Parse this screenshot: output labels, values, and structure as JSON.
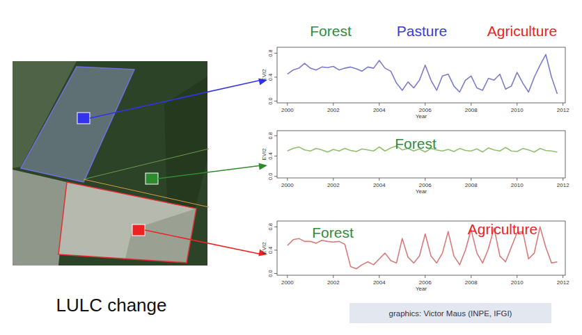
{
  "caption": "LULC change",
  "credit": "graphics: Victor Maus (INPE, IFGI)",
  "chart_data": [
    {
      "type": "line",
      "x_label": "Year",
      "y_label": "EVI2",
      "color": "#7b7bcc",
      "annotations": [
        {
          "text": "Forest",
          "color": "#2e8b3a"
        },
        {
          "text": "Pasture",
          "color": "#3a3ae0"
        },
        {
          "text": "Agriculture",
          "color": "#ee2222"
        }
      ],
      "x": [
        2000,
        2000.25,
        2000.5,
        2000.75,
        2001,
        2001.25,
        2001.5,
        2001.75,
        2002,
        2002.25,
        2002.5,
        2002.75,
        2003,
        2003.25,
        2003.5,
        2003.75,
        2004,
        2004.25,
        2004.5,
        2004.75,
        2005,
        2005.25,
        2005.5,
        2005.75,
        2006,
        2006.25,
        2006.5,
        2006.75,
        2007,
        2007.25,
        2007.5,
        2007.75,
        2008,
        2008.25,
        2008.5,
        2008.75,
        2009,
        2009.25,
        2009.5,
        2009.75,
        2010,
        2010.25,
        2010.5,
        2010.75,
        2011,
        2011.25,
        2011.5,
        2011.75
      ],
      "values": [
        0.45,
        0.52,
        0.55,
        0.63,
        0.55,
        0.52,
        0.57,
        0.56,
        0.58,
        0.52,
        0.55,
        0.57,
        0.54,
        0.5,
        0.57,
        0.55,
        0.68,
        0.55,
        0.5,
        0.3,
        0.18,
        0.32,
        0.22,
        0.35,
        0.6,
        0.35,
        0.18,
        0.42,
        0.45,
        0.25,
        0.15,
        0.35,
        0.42,
        0.22,
        0.18,
        0.38,
        0.35,
        0.45,
        0.2,
        0.25,
        0.48,
        0.3,
        0.15,
        0.4,
        0.6,
        0.78,
        0.4,
        0.12
      ],
      "xlim": [
        1999.55,
        2012.1
      ],
      "ylim": [
        -0.03,
        0.9
      ],
      "xticks": [
        2000,
        2002,
        2004,
        2006,
        2008,
        2010,
        2012
      ],
      "yticks": [
        {
          "value": 0,
          "label": "0.0"
        },
        {
          "value": 0.4,
          "label": "0.4"
        },
        {
          "value": 0.8,
          "label": "0.8"
        }
      ]
    },
    {
      "type": "line",
      "x_label": "Year",
      "y_label": "EVI2",
      "color": "#8fbf6f",
      "annotations": [
        {
          "text": "Forest",
          "color": "#2e8b3a"
        }
      ],
      "x": [
        2000,
        2000.25,
        2000.5,
        2000.75,
        2001,
        2001.25,
        2001.5,
        2001.75,
        2002,
        2002.25,
        2002.5,
        2002.75,
        2003,
        2003.25,
        2003.5,
        2003.75,
        2004,
        2004.25,
        2004.5,
        2004.75,
        2005,
        2005.25,
        2005.5,
        2005.75,
        2006,
        2006.25,
        2006.5,
        2006.75,
        2007,
        2007.25,
        2007.5,
        2007.75,
        2008,
        2008.25,
        2008.5,
        2008.75,
        2009,
        2009.25,
        2009.5,
        2009.75,
        2010,
        2010.25,
        2010.5,
        2010.75,
        2011,
        2011.25,
        2011.5,
        2011.75
      ],
      "values": [
        0.5,
        0.55,
        0.58,
        0.52,
        0.5,
        0.55,
        0.52,
        0.48,
        0.53,
        0.5,
        0.55,
        0.51,
        0.49,
        0.54,
        0.52,
        0.5,
        0.58,
        0.5,
        0.56,
        0.6,
        0.52,
        0.55,
        0.5,
        0.54,
        0.48,
        0.55,
        0.52,
        0.5,
        0.53,
        0.49,
        0.55,
        0.51,
        0.5,
        0.54,
        0.48,
        0.56,
        0.52,
        0.5,
        0.57,
        0.5,
        0.49,
        0.55,
        0.52,
        0.48,
        0.55,
        0.51,
        0.5,
        0.48
      ],
      "xlim": [
        1999.55,
        2012.1
      ],
      "ylim": [
        -0.03,
        0.9
      ],
      "xticks": [
        2000,
        2002,
        2004,
        2006,
        2008,
        2010,
        2012
      ],
      "yticks": [
        {
          "value": 0,
          "label": "0.0"
        },
        {
          "value": 0.4,
          "label": "0.4"
        },
        {
          "value": 0.8,
          "label": "0.8"
        }
      ]
    },
    {
      "type": "line",
      "x_label": "Year",
      "y_label": "EVI2",
      "color": "#d87b7b",
      "annotations": [
        {
          "text": "Forest",
          "color": "#2e8b3a"
        },
        {
          "text": "Agriculture",
          "color": "#ee2222"
        }
      ],
      "x": [
        2000,
        2000.25,
        2000.5,
        2000.75,
        2001,
        2001.25,
        2001.5,
        2001.75,
        2002,
        2002.25,
        2002.5,
        2002.75,
        2003,
        2003.25,
        2003.5,
        2003.75,
        2004,
        2004.25,
        2004.5,
        2004.75,
        2005,
        2005.25,
        2005.5,
        2005.75,
        2006,
        2006.25,
        2006.5,
        2006.75,
        2007,
        2007.25,
        2007.5,
        2007.75,
        2008,
        2008.25,
        2008.5,
        2008.75,
        2009,
        2009.25,
        2009.5,
        2009.75,
        2010,
        2010.25,
        2010.5,
        2010.75,
        2011,
        2011.25,
        2011.5,
        2011.75
      ],
      "values": [
        0.48,
        0.58,
        0.6,
        0.55,
        0.55,
        0.52,
        0.57,
        0.55,
        0.54,
        0.55,
        0.5,
        0.12,
        0.08,
        0.15,
        0.2,
        0.15,
        0.25,
        0.35,
        0.22,
        0.18,
        0.6,
        0.28,
        0.18,
        0.3,
        0.68,
        0.3,
        0.18,
        0.35,
        0.72,
        0.3,
        0.15,
        0.4,
        0.75,
        0.35,
        0.18,
        0.42,
        0.78,
        0.3,
        0.2,
        0.45,
        0.7,
        0.72,
        0.25,
        0.35,
        0.8,
        0.45,
        0.18,
        0.2
      ],
      "xlim": [
        1999.55,
        2012.1
      ],
      "ylim": [
        -0.03,
        0.9
      ],
      "xticks": [
        2000,
        2002,
        2004,
        2006,
        2008,
        2010,
        2012
      ],
      "yticks": [
        {
          "value": 0,
          "label": "0.0"
        },
        {
          "value": 0.4,
          "label": "0.4"
        },
        {
          "value": 0.8,
          "label": "0.8"
        }
      ]
    }
  ]
}
